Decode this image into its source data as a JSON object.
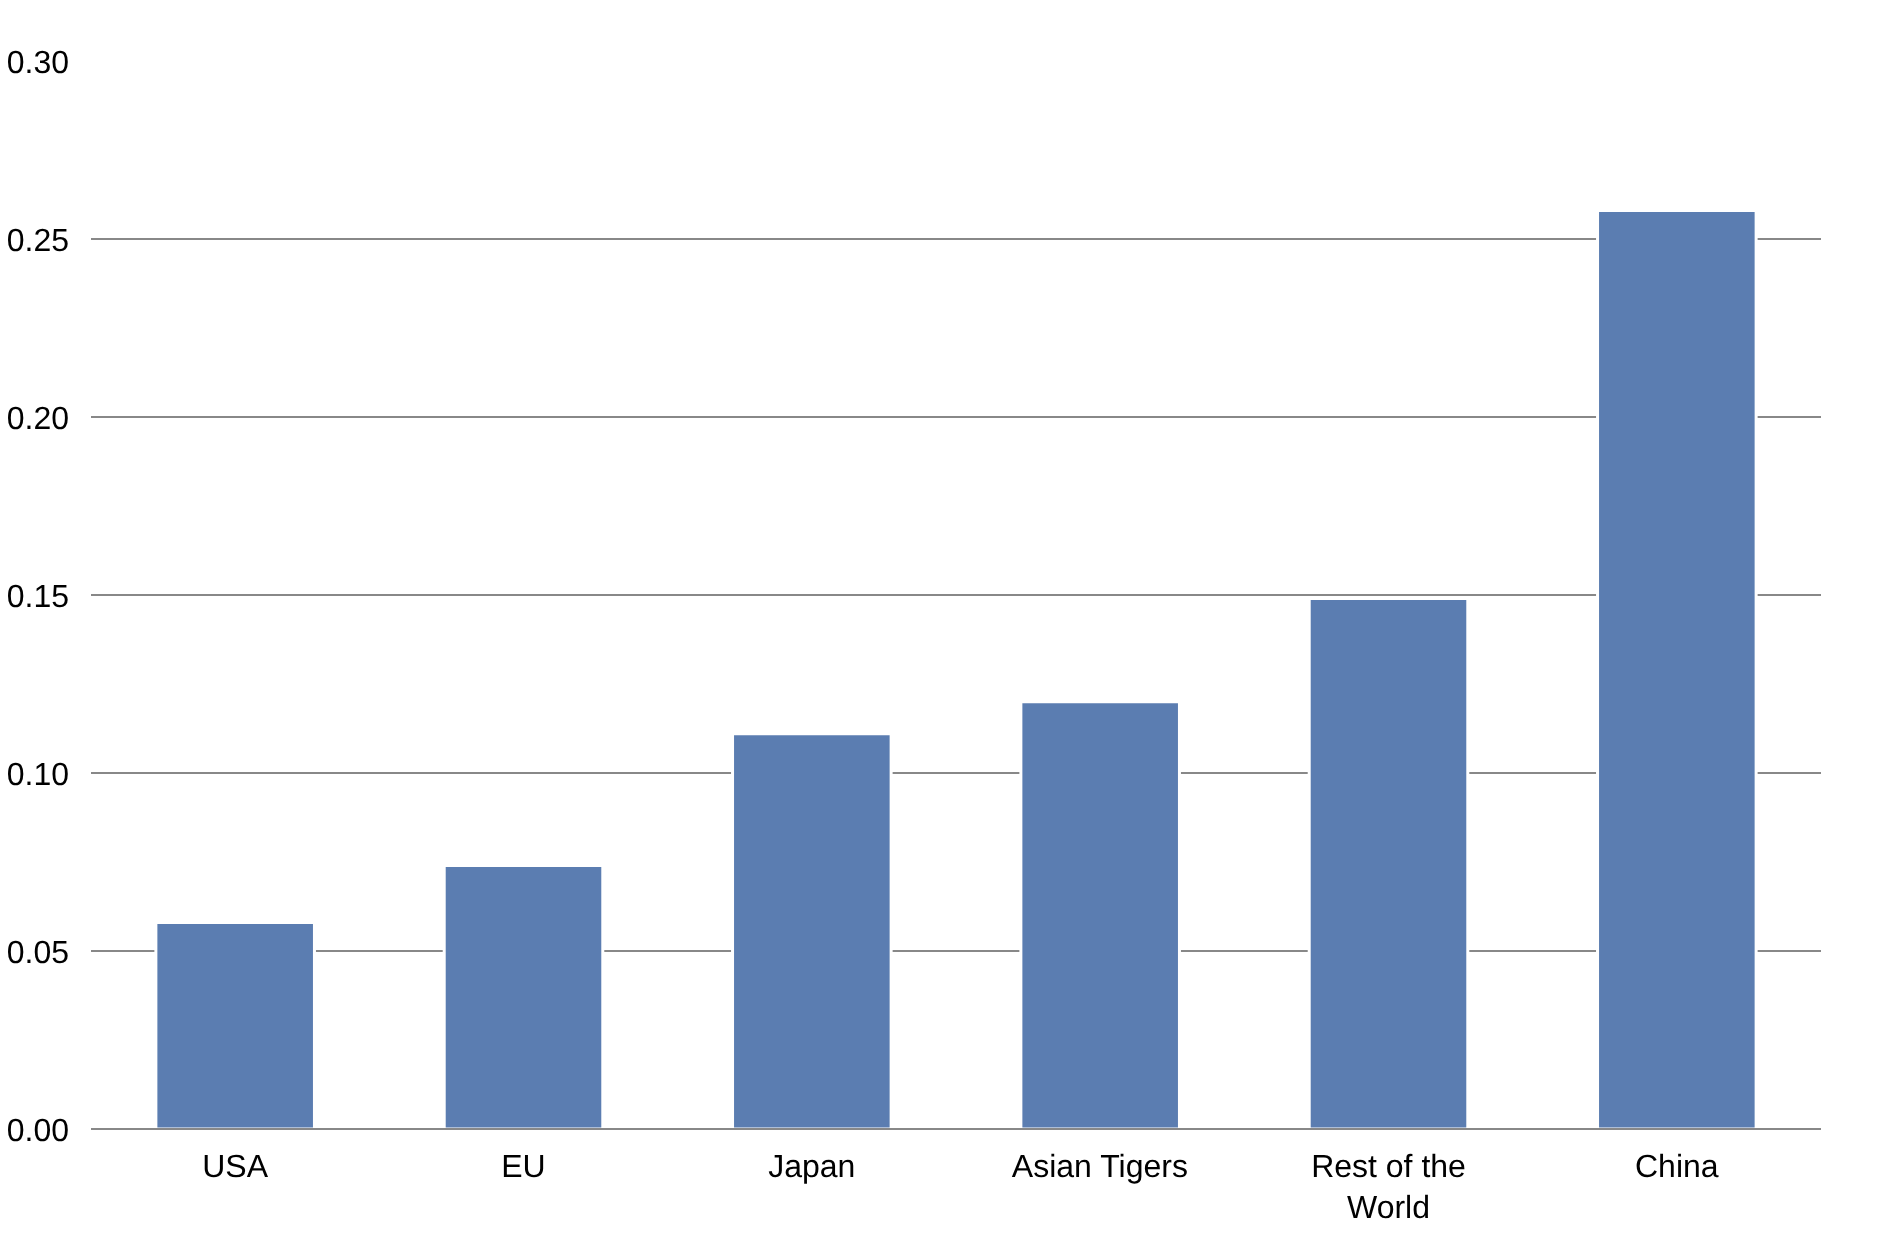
{
  "chart_data": {
    "type": "bar",
    "categories": [
      "USA",
      "EU",
      "Japan",
      "Asian Tigers",
      "Rest of the World",
      "China"
    ],
    "values": [
      0.058,
      0.074,
      0.111,
      0.12,
      0.149,
      0.258
    ],
    "color": "#5b7db1",
    "ylim": [
      0,
      0.3
    ],
    "yticks": [
      {
        "value": 0,
        "label": "0.00"
      },
      {
        "value": 0.05,
        "label": "0.05"
      },
      {
        "value": 0.1,
        "label": "0.10"
      },
      {
        "value": 0.15,
        "label": "0.15"
      },
      {
        "value": 0.2,
        "label": "0.20"
      },
      {
        "value": 0.25,
        "label": "0.25"
      },
      {
        "value": 0.3,
        "label": "0.30"
      }
    ],
    "grid": "y"
  }
}
